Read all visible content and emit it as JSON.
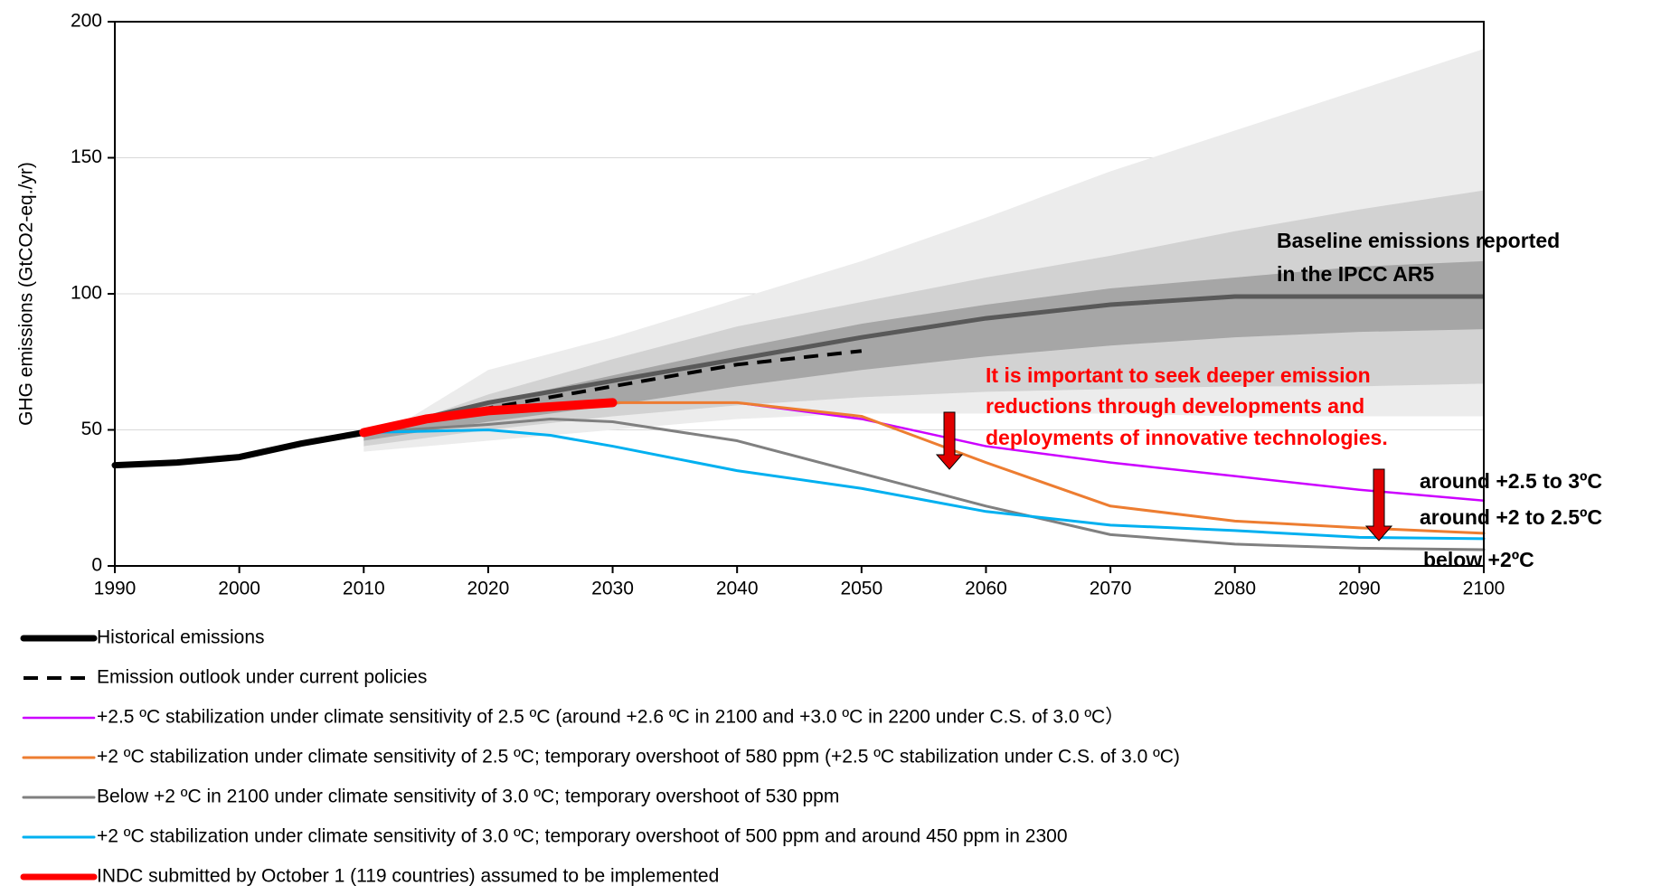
{
  "chart_data": {
    "type": "line",
    "ylabel": "GHG emissions (GtCO2-eq./yr)",
    "xlim": [
      1990,
      2100
    ],
    "xticks": [
      1990,
      2000,
      2010,
      2020,
      2030,
      2040,
      2050,
      2060,
      2070,
      2080,
      2090,
      2100
    ],
    "ylim": [
      0,
      200
    ],
    "yticks": [
      0,
      50,
      100,
      150,
      200
    ],
    "grid": true,
    "bands": [
      {
        "color": "#ececec",
        "x": [
          2010,
          2020,
          2030,
          2040,
          2050,
          2060,
          2070,
          2080,
          2090,
          2100
        ],
        "upper": [
          44,
          72,
          84,
          98,
          112,
          128,
          145,
          160,
          175,
          190
        ],
        "lower": [
          42,
          46,
          50,
          54,
          56,
          56,
          56,
          55,
          55,
          55
        ]
      },
      {
        "color": "#d2d2d2",
        "x": [
          2010,
          2020,
          2030,
          2040,
          2050,
          2060,
          2070,
          2080,
          2090,
          2100
        ],
        "upper": [
          47,
          63,
          76,
          88,
          97,
          106,
          114,
          123,
          131,
          138
        ],
        "lower": [
          44,
          50,
          55,
          59,
          62,
          64,
          65,
          66,
          66,
          67
        ]
      },
      {
        "color": "#a6a6a6",
        "x": [
          2010,
          2020,
          2030,
          2040,
          2050,
          2060,
          2070,
          2080,
          2090,
          2100
        ],
        "upper": [
          48,
          60,
          70,
          80,
          89,
          96,
          102,
          106,
          110,
          112
        ],
        "lower": [
          46,
          53,
          59,
          66,
          72,
          77,
          81,
          84,
          86,
          87
        ]
      }
    ],
    "baseline": {
      "color": "#595959",
      "x": [
        2010,
        2020,
        2030,
        2040,
        2050,
        2060,
        2070,
        2080,
        2090,
        2100
      ],
      "values": [
        49,
        60,
        68,
        76,
        84,
        91,
        96,
        99,
        99,
        99
      ]
    },
    "series": [
      {
        "name": "Historical emissions",
        "color": "#000000",
        "width": 7,
        "x": [
          1990,
          1995,
          2000,
          2005,
          2010
        ],
        "values": [
          37,
          38,
          40,
          45,
          49
        ]
      },
      {
        "name": "Emission outlook under current policies",
        "color": "#000000",
        "width": 4,
        "dashed": true,
        "x": [
          2010,
          2020,
          2030,
          2040,
          2050
        ],
        "values": [
          49,
          58,
          66,
          74,
          79
        ]
      },
      {
        "name": "+2.5 ºC stabilization under climate sensitivity of 2.5 ºC (around +2.6 ºC in 2100 and +3.0 ºC in 2200 under C.S. of 3.0 ºC）",
        "color": "#cc00ff",
        "width": 2.5,
        "x": [
          2010,
          2020,
          2030,
          2040,
          2050,
          2060,
          2070,
          2080,
          2090,
          2100
        ],
        "values": [
          49,
          57,
          60,
          60,
          54,
          44,
          38,
          33,
          28,
          24
        ]
      },
      {
        "name": "+2 ºC stabilization under climate sensitivity of 2.5 ºC; temporary overshoot of 580 ppm (+2.5 ºC stabilization under C.S. of 3.0 ºC)",
        "color": "#ed7d31",
        "width": 3,
        "x": [
          2010,
          2020,
          2030,
          2040,
          2050,
          2060,
          2070,
          2080,
          2090,
          2100
        ],
        "values": [
          49,
          57,
          60,
          60,
          55,
          38,
          22,
          16.5,
          14,
          12
        ]
      },
      {
        "name": "Below +2 ºC in 2100 under climate sensitivity of 3.0 ºC; temporary overshoot of 530 ppm",
        "color": "#808080",
        "width": 3,
        "x": [
          2010,
          2020,
          2025,
          2030,
          2040,
          2050,
          2060,
          2070,
          2080,
          2090,
          2100
        ],
        "values": [
          49,
          52,
          54,
          53,
          46,
          34,
          22,
          11.5,
          8,
          6.5,
          6
        ]
      },
      {
        "name": "+2 ºC stabilization under climate sensitivity of 3.0 ºC; temporary overshoot of 500 ppm and around 450 ppm in 2300",
        "color": "#00b0f0",
        "width": 3,
        "x": [
          2010,
          2020,
          2025,
          2030,
          2040,
          2050,
          2060,
          2070,
          2080,
          2090,
          2100
        ],
        "values": [
          49,
          50,
          48,
          44,
          35,
          28.5,
          20,
          15,
          13,
          10.5,
          10
        ]
      },
      {
        "name": "INDC submitted by October 1 (119 countries) assumed to be implemented",
        "color": "#ff0000",
        "width": 10,
        "x": [
          2010,
          2015,
          2020,
          2030
        ],
        "values": [
          49,
          54,
          57,
          60
        ]
      }
    ],
    "annotations": [
      {
        "text": "Baseline emissions reported",
        "color": "#000000"
      },
      {
        "text": "in the IPCC AR5",
        "color": "#000000"
      },
      {
        "text": "It is important to seek deeper emission",
        "color": "#ff0000"
      },
      {
        "text": "reductions through developments and",
        "color": "#ff0000"
      },
      {
        "text": "deployments of innovative technologies.",
        "color": "#ff0000"
      },
      {
        "text": "around +2.5 to 3ºC",
        "color": "#000000"
      },
      {
        "text": "around +2 to 2.5ºC",
        "color": "#000000"
      },
      {
        "text": "below +2ºC",
        "color": "#000000"
      }
    ]
  }
}
